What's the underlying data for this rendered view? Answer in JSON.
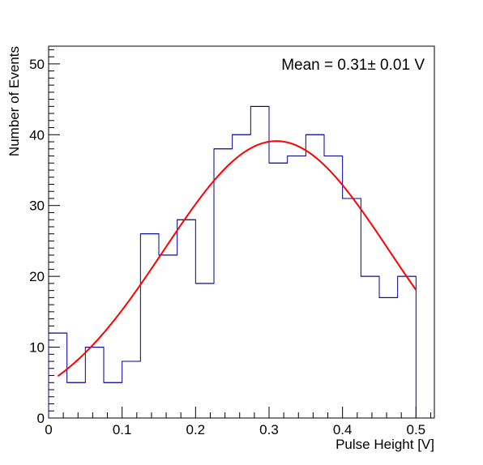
{
  "chart_data": {
    "type": "histogram",
    "xlabel": "Pulse Height [V]",
    "ylabel": "Number of Events",
    "annotation": "Mean = 0.31± 0.01 V",
    "xlim": [
      0,
      0.525
    ],
    "ylim": [
      0,
      52.5
    ],
    "x_ticks": [
      0,
      0.1,
      0.2,
      0.3,
      0.4,
      0.5
    ],
    "x_tick_labels": [
      "0",
      "0.1",
      "0.2",
      "0.3",
      "0.4",
      "0.5"
    ],
    "y_ticks": [
      0,
      10,
      20,
      30,
      40,
      50
    ],
    "y_tick_labels": [
      "0",
      "10",
      "20",
      "30",
      "40",
      "50"
    ],
    "grid": false,
    "histogram": {
      "color": "#000099",
      "bin_edges": [
        0,
        0.025,
        0.05,
        0.075,
        0.1,
        0.125,
        0.15,
        0.175,
        0.2,
        0.225,
        0.25,
        0.275,
        0.3,
        0.325,
        0.35,
        0.375,
        0.4,
        0.425,
        0.45,
        0.475,
        0.5
      ],
      "counts": [
        12,
        5,
        10,
        5,
        8,
        26,
        23,
        28,
        19,
        38,
        40,
        44,
        36,
        37,
        40,
        37,
        31,
        20,
        17,
        20
      ]
    },
    "fit": {
      "type": "gaussian",
      "color": "#ff0000",
      "amplitude": 39.1,
      "mean": 0.31,
      "sigma": 0.153,
      "x_range": [
        0.0125,
        0.5
      ]
    }
  }
}
